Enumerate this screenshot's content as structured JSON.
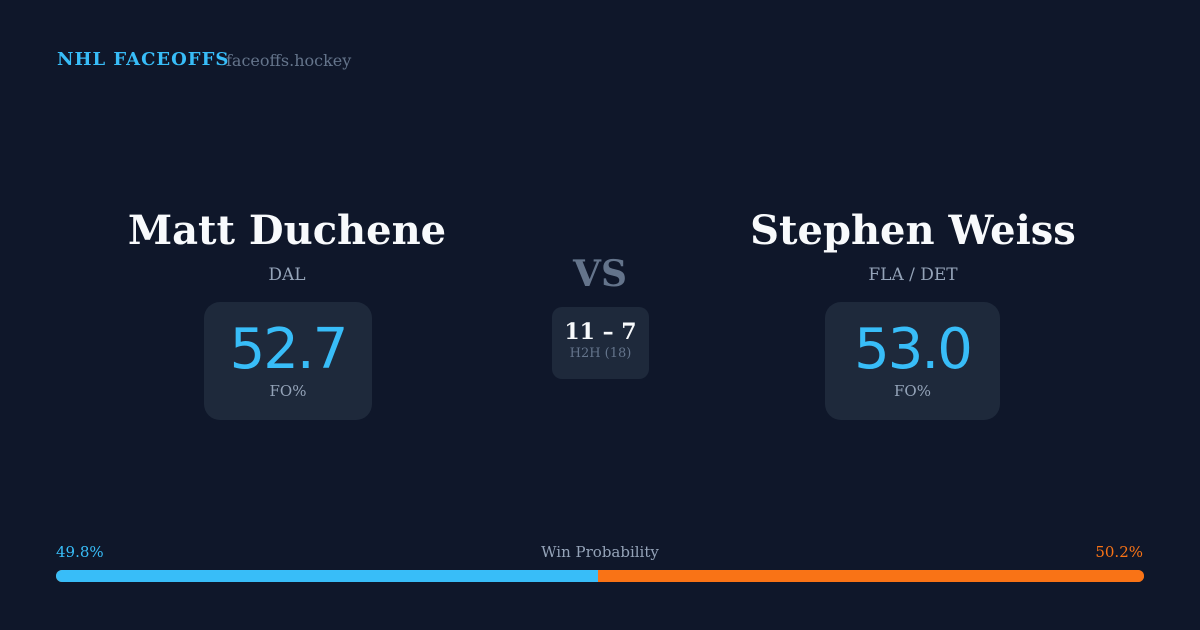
{
  "header": {
    "brand": "NHL FACEOFFS",
    "domain": "faceoffs.hockey"
  },
  "players": [
    {
      "name": "Matt Duchene",
      "team": "DAL",
      "fo_pct": "52.7",
      "fo_label": "FO%"
    },
    {
      "name": "Stephen Weiss",
      "team": "FLA / DET",
      "fo_pct": "53.0",
      "fo_label": "FO%"
    }
  ],
  "versus": {
    "label": "VS",
    "h2h_score": "11 – 7",
    "h2h_label": "H2H (18)"
  },
  "win_probability": {
    "title": "Win Probability",
    "left_label": "49.8%",
    "right_label": "50.2%",
    "left_value": 49.8,
    "right_value": 50.2,
    "colors": {
      "left": "#38bdf8",
      "right": "#f97316"
    }
  }
}
